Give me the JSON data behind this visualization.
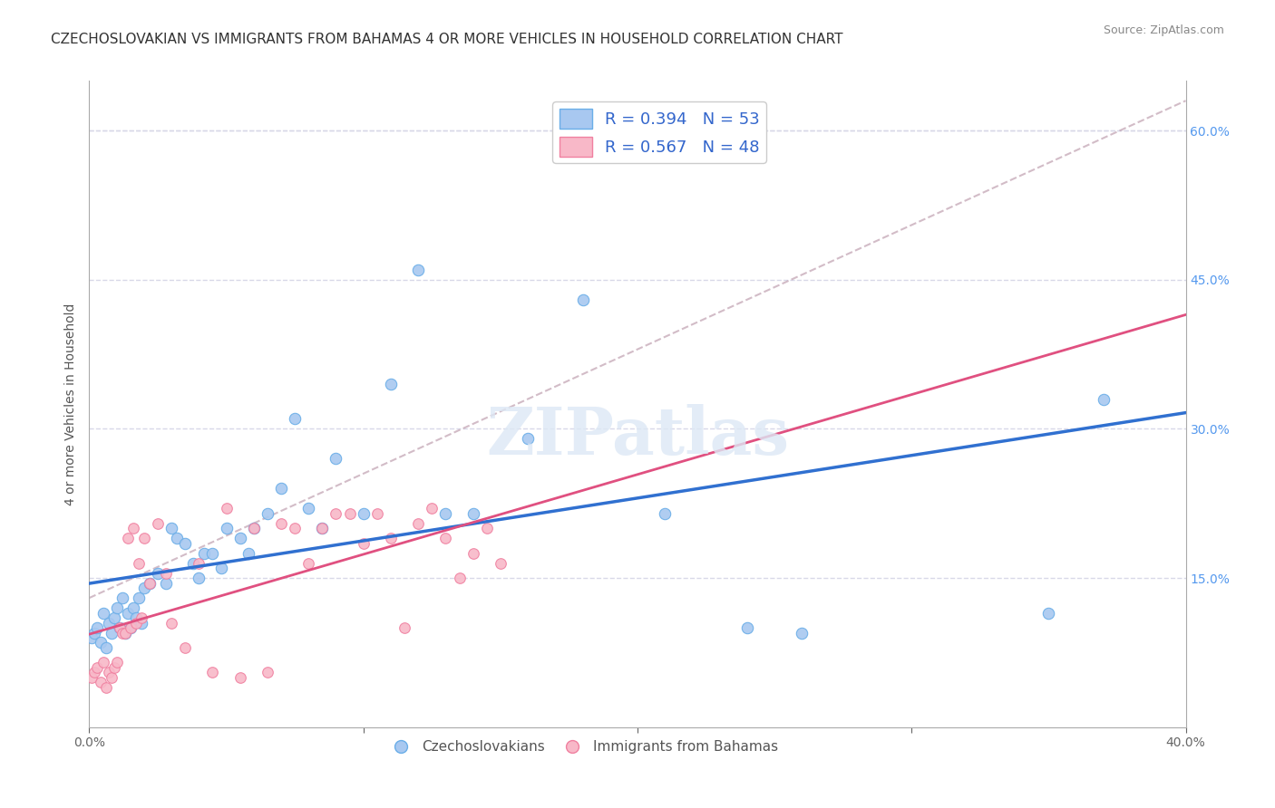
{
  "title": "CZECHOSLOVAKIAN VS IMMIGRANTS FROM BAHAMAS 4 OR MORE VEHICLES IN HOUSEHOLD CORRELATION CHART",
  "source": "Source: ZipAtlas.com",
  "ylabel": "4 or more Vehicles in Household",
  "xlabel": "",
  "xlim": [
    0.0,
    0.4
  ],
  "ylim": [
    0.0,
    0.65
  ],
  "xticks": [
    0.0,
    0.05,
    0.1,
    0.15,
    0.2,
    0.25,
    0.3,
    0.35,
    0.4
  ],
  "xtick_labels": [
    "0.0%",
    "",
    "",
    "",
    "",
    "",
    "",
    "",
    "40.0%"
  ],
  "yticks_right": [
    0.15,
    0.3,
    0.45,
    0.6
  ],
  "ytick_labels_right": [
    "15.0%",
    "30.0%",
    "45.0%",
    "60.0%"
  ],
  "czech_color": "#a8c8f0",
  "czech_edge": "#6aaee8",
  "bahamas_color": "#f8b8c8",
  "bahamas_edge": "#f080a0",
  "trend_czech_color": "#3070d0",
  "trend_bahamas_color": "#e05080",
  "ref_line_color": "#c0a0b0",
  "legend_czech_R": "R = 0.394",
  "legend_czech_N": "N = 53",
  "legend_bahamas_R": "R = 0.567",
  "legend_bahamas_N": "N = 48",
  "watermark": "ZIPatlas",
  "legend_labels": [
    "Czechoslovakians",
    "Immigrants from Bahamas"
  ],
  "czech_x": [
    0.001,
    0.002,
    0.003,
    0.004,
    0.005,
    0.006,
    0.007,
    0.008,
    0.009,
    0.01,
    0.011,
    0.012,
    0.013,
    0.014,
    0.015,
    0.016,
    0.017,
    0.018,
    0.019,
    0.02,
    0.022,
    0.025,
    0.028,
    0.03,
    0.032,
    0.035,
    0.038,
    0.04,
    0.042,
    0.045,
    0.048,
    0.05,
    0.055,
    0.058,
    0.06,
    0.065,
    0.07,
    0.075,
    0.08,
    0.085,
    0.09,
    0.1,
    0.11,
    0.12,
    0.13,
    0.14,
    0.16,
    0.18,
    0.21,
    0.24,
    0.26,
    0.35,
    0.37
  ],
  "czech_y": [
    0.09,
    0.095,
    0.1,
    0.085,
    0.115,
    0.08,
    0.105,
    0.095,
    0.11,
    0.12,
    0.1,
    0.13,
    0.095,
    0.115,
    0.1,
    0.12,
    0.11,
    0.13,
    0.105,
    0.14,
    0.145,
    0.155,
    0.145,
    0.2,
    0.19,
    0.185,
    0.165,
    0.15,
    0.175,
    0.175,
    0.16,
    0.2,
    0.19,
    0.175,
    0.2,
    0.215,
    0.24,
    0.31,
    0.22,
    0.2,
    0.27,
    0.215,
    0.345,
    0.46,
    0.215,
    0.215,
    0.29,
    0.43,
    0.215,
    0.1,
    0.095,
    0.115,
    0.33
  ],
  "bahamas_x": [
    0.001,
    0.002,
    0.003,
    0.004,
    0.005,
    0.006,
    0.007,
    0.008,
    0.009,
    0.01,
    0.011,
    0.012,
    0.013,
    0.014,
    0.015,
    0.016,
    0.017,
    0.018,
    0.019,
    0.02,
    0.022,
    0.025,
    0.028,
    0.03,
    0.035,
    0.04,
    0.045,
    0.05,
    0.055,
    0.06,
    0.065,
    0.07,
    0.075,
    0.08,
    0.085,
    0.09,
    0.095,
    0.1,
    0.105,
    0.11,
    0.115,
    0.12,
    0.125,
    0.13,
    0.135,
    0.14,
    0.145,
    0.15
  ],
  "bahamas_y": [
    0.05,
    0.055,
    0.06,
    0.045,
    0.065,
    0.04,
    0.055,
    0.05,
    0.06,
    0.065,
    0.1,
    0.095,
    0.095,
    0.19,
    0.1,
    0.2,
    0.105,
    0.165,
    0.11,
    0.19,
    0.145,
    0.205,
    0.155,
    0.105,
    0.08,
    0.165,
    0.055,
    0.22,
    0.05,
    0.2,
    0.055,
    0.205,
    0.2,
    0.165,
    0.2,
    0.215,
    0.215,
    0.185,
    0.215,
    0.19,
    0.1,
    0.205,
    0.22,
    0.19,
    0.15,
    0.175,
    0.2,
    0.165
  ],
  "grid_color": "#d8d8e8",
  "bg_color": "#ffffff",
  "title_fontsize": 11,
  "axis_fontsize": 10,
  "tick_fontsize": 10,
  "source_fontsize": 9
}
